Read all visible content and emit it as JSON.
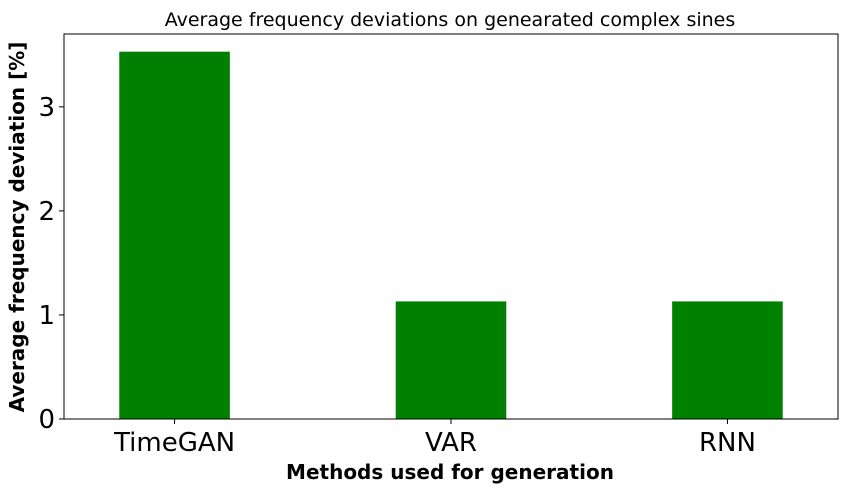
{
  "chart_data": {
    "type": "bar",
    "title": "Average frequency deviations on genearated complex sines",
    "xlabel": "Methods used for generation",
    "ylabel": "Average frequency deviation [%]",
    "categories": [
      "TimeGAN",
      "VAR",
      "RNN"
    ],
    "values": [
      3.53,
      1.13,
      1.13
    ],
    "yticks": [
      "0",
      "1",
      "2",
      "3"
    ],
    "ylim": [
      0,
      3.7
    ],
    "bar_color": "#008000",
    "grid": false
  }
}
